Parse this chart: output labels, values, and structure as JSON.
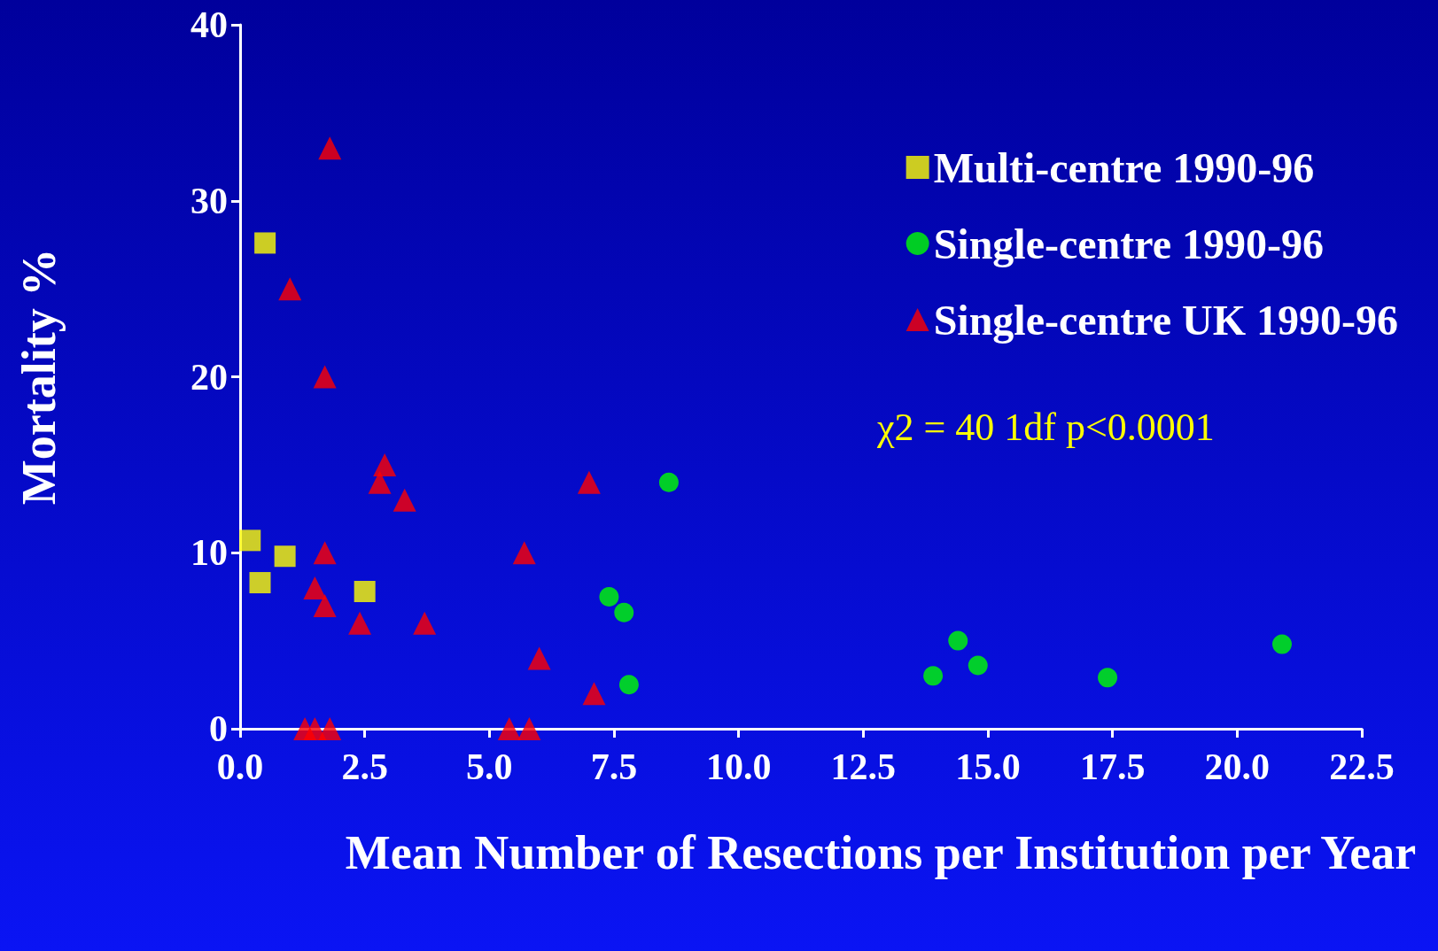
{
  "chart_data": {
    "type": "scatter",
    "xlabel": "Mean Number of Resections per Institution per Year",
    "ylabel": "Mortality %",
    "xlim": [
      0,
      22.5
    ],
    "ylim": [
      0,
      40
    ],
    "xticks": [
      {
        "value": 0,
        "label": "0.0"
      },
      {
        "value": 2.5,
        "label": "2.5"
      },
      {
        "value": 5,
        "label": "5.0"
      },
      {
        "value": 7.5,
        "label": "7.5"
      },
      {
        "value": 10,
        "label": "10.0"
      },
      {
        "value": 12.5,
        "label": "12.5"
      },
      {
        "value": 15,
        "label": "15.0"
      },
      {
        "value": 17.5,
        "label": "17.5"
      },
      {
        "value": 20,
        "label": "20.0"
      },
      {
        "value": 22.5,
        "label": "22.5"
      }
    ],
    "yticks": [
      0,
      10,
      20,
      30,
      40
    ],
    "grid": false,
    "legend": "top right",
    "annotations": [
      "χ2 = 40 1df p<0.0001"
    ],
    "series": [
      {
        "name": "Multi-centre 1990-96",
        "color": "#ffff00",
        "marker": "square",
        "x": [
          0.5,
          0.2,
          0.9,
          0.4,
          2.5
        ],
        "values": [
          27.6,
          10.7,
          9.8,
          8.3,
          7.8
        ]
      },
      {
        "name": "Single-centre 1990-96",
        "color": "#00ff00",
        "marker": "circle",
        "x": [
          8.6,
          7.4,
          7.7,
          7.8,
          13.9,
          14.4,
          14.8,
          17.4,
          20.9
        ],
        "values": [
          14,
          7.5,
          6.6,
          2.5,
          3.0,
          5.0,
          3.6,
          2.9,
          4.8
        ]
      },
      {
        "name": "Single-centre UK 1990-96",
        "color": "#ff0000",
        "marker": "triangle",
        "x": [
          1.8,
          1.0,
          1.7,
          2.9,
          2.8,
          3.3,
          1.7,
          1.5,
          1.7,
          2.4,
          3.7,
          7.0,
          5.7,
          6.0,
          7.1,
          1.3,
          1.5,
          1.8,
          5.4,
          5.8
        ],
        "values": [
          33,
          25,
          20,
          15,
          14,
          13,
          10,
          8,
          7,
          6,
          6,
          14,
          10,
          4,
          2,
          0,
          0,
          0,
          0,
          0
        ]
      }
    ]
  }
}
